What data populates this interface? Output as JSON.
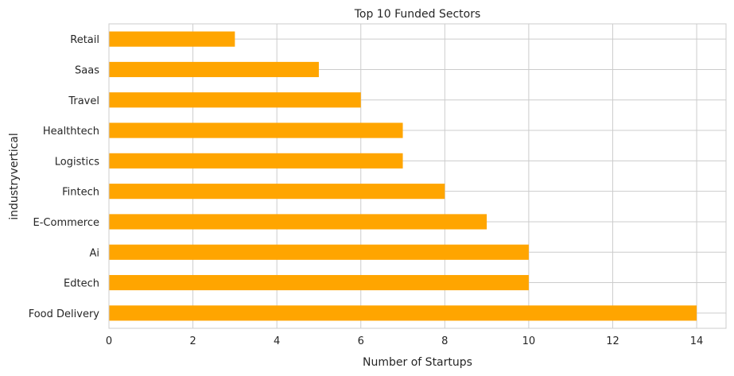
{
  "chart_data": {
    "type": "bar",
    "orientation": "horizontal",
    "title": "Top 10 Funded Sectors",
    "xlabel": "Number of Startups",
    "ylabel": "industryvertical",
    "categories": [
      "Food Delivery",
      "Edtech",
      "Ai",
      "E-Commerce",
      "Fintech",
      "Logistics",
      "Healthtech",
      "Travel",
      "Saas",
      "Retail"
    ],
    "values": [
      14,
      10,
      10,
      9,
      8,
      7,
      7,
      6,
      5,
      3
    ],
    "xlim": [
      0,
      14.7
    ],
    "xticks": [
      0,
      2,
      4,
      6,
      8,
      10,
      12,
      14
    ],
    "bar_color": "#ffa500",
    "grid": true
  }
}
